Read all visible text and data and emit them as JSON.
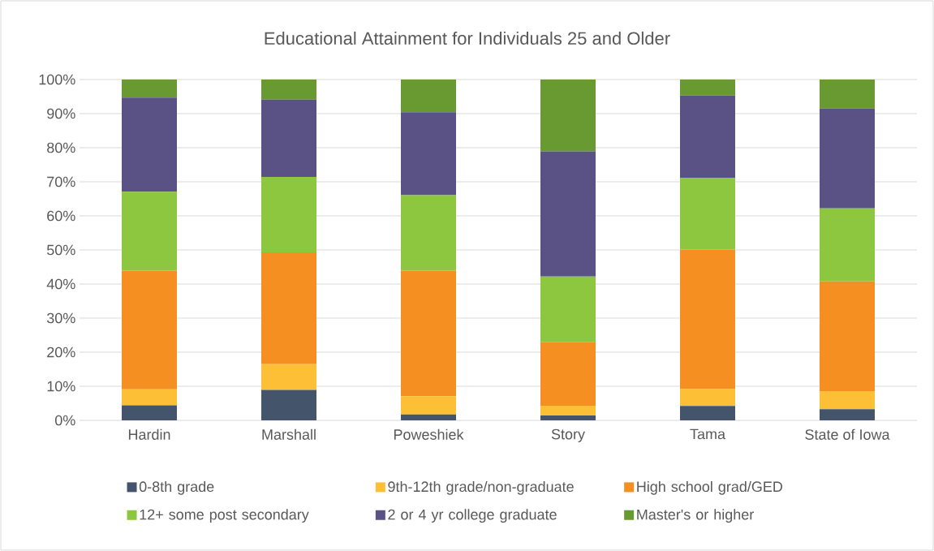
{
  "chart_data": {
    "type": "bar",
    "stacked": true,
    "title": "Educational Attainment for Individuals 25 and Older",
    "categories": [
      "Hardin",
      "Marshall",
      "Poweshiek",
      "Story",
      "Tama",
      "State of Iowa"
    ],
    "series": [
      {
        "name": "0-8th grade",
        "color": "#44546a",
        "values": [
          4.4,
          8.9,
          1.7,
          1.4,
          4.2,
          3.3
        ]
      },
      {
        "name": "9th-12th grade/non-graduate",
        "color": "#fdbf36",
        "values": [
          4.7,
          7.6,
          5.4,
          2.9,
          5.0,
          5.3
        ]
      },
      {
        "name": "High school grad/GED",
        "color": "#f58f21",
        "values": [
          34.8,
          32.8,
          36.8,
          18.6,
          40.9,
          32.2
        ]
      },
      {
        "name": "12+ some post secondary",
        "color": "#8dc63f",
        "values": [
          23.2,
          22.1,
          22.2,
          19.3,
          21.1,
          21.4
        ]
      },
      {
        "name": "2 or 4 yr college graduate",
        "color": "#5a5185",
        "values": [
          27.6,
          22.7,
          24.3,
          36.7,
          24.1,
          29.3
        ]
      },
      {
        "name": "Master's or higher",
        "color": "#699a31",
        "values": [
          5.3,
          5.9,
          9.6,
          21.1,
          4.7,
          8.5
        ]
      }
    ],
    "ylim": [
      0,
      100
    ],
    "yticks": [
      {
        "value": 0,
        "label": "0%"
      },
      {
        "value": 10,
        "label": "10%"
      },
      {
        "value": 20,
        "label": "20%"
      },
      {
        "value": 30,
        "label": "30%"
      },
      {
        "value": 40,
        "label": "40%"
      },
      {
        "value": 50,
        "label": "50%"
      },
      {
        "value": 60,
        "label": "60%"
      },
      {
        "value": 70,
        "label": "70%"
      },
      {
        "value": 80,
        "label": "80%"
      },
      {
        "value": 90,
        "label": "90%"
      },
      {
        "value": 100,
        "label": "100%"
      }
    ],
    "grid": "y",
    "legend": "bottom"
  }
}
